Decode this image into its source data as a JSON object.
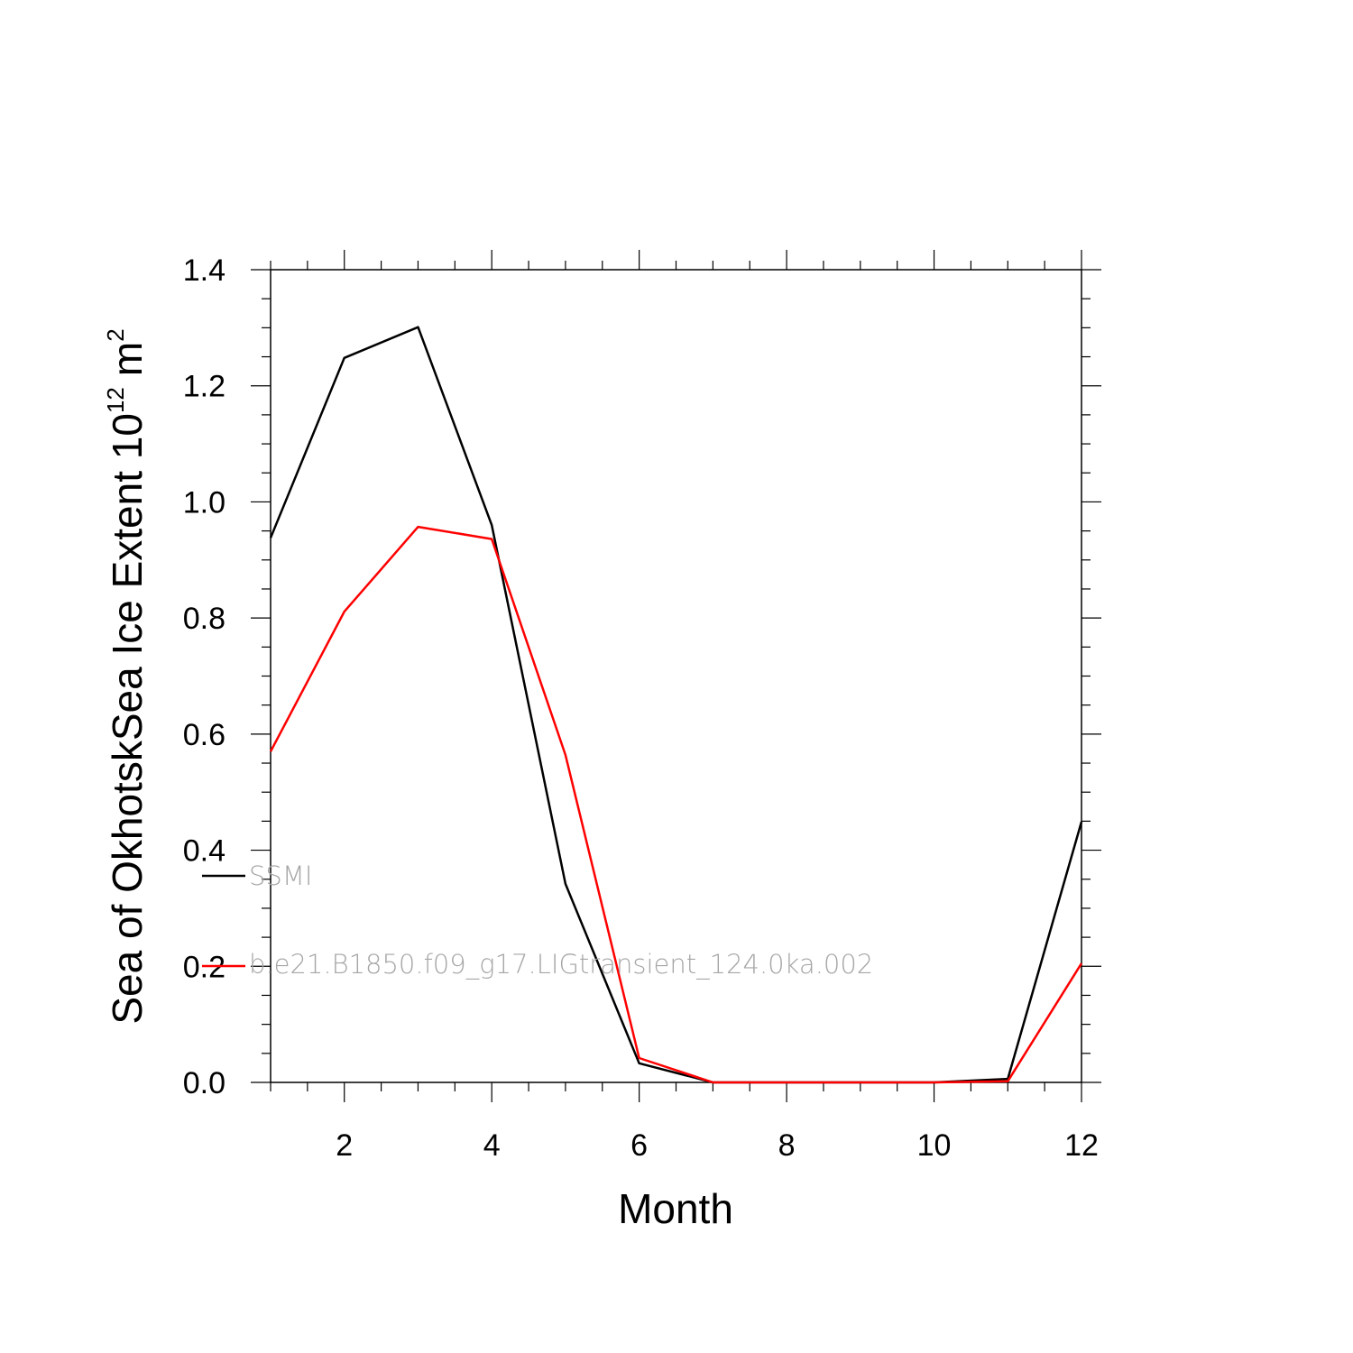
{
  "chart_data": {
    "type": "line",
    "xlabel": "Month",
    "ylabel": "Sea of OkhotskSea Ice Extent 10",
    "ylabel_superscript": "12",
    "ylabel_unit": "m",
    "ylabel_unit_superscript": "2",
    "xlim": [
      1,
      12
    ],
    "ylim": [
      0,
      1.4
    ],
    "x_major_ticks": [
      2,
      4,
      6,
      8,
      10,
      12
    ],
    "x_tick_labels": [
      "2",
      "4",
      "6",
      "8",
      "10",
      "12"
    ],
    "y_major_ticks": [
      0,
      0.2,
      0.4,
      0.6,
      0.8,
      1.0,
      1.2,
      1.4
    ],
    "y_tick_labels": [
      "0.0",
      "0.2",
      "0.4",
      "0.6",
      "0.8",
      "1.0",
      "1.2",
      "1.4"
    ],
    "grid": false,
    "legend_position": "left-inside",
    "x": [
      1,
      2,
      3,
      4,
      5,
      6,
      7,
      8,
      9,
      10,
      11,
      12
    ],
    "series": [
      {
        "name": "SSMI",
        "color": "#000000",
        "values": [
          0.938,
          1.248,
          1.301,
          0.96,
          0.342,
          0.033,
          0.0,
          0.0,
          0.0,
          0.0,
          0.006,
          0.449
        ]
      },
      {
        "name": "b.e21.B1850.f09_g17.LIGtransient_124.0ka.002",
        "color": "#ff0000",
        "values": [
          0.57,
          0.811,
          0.957,
          0.936,
          0.564,
          0.042,
          0.0,
          0.0,
          0.0,
          0.0,
          0.002,
          0.205
        ]
      }
    ]
  }
}
